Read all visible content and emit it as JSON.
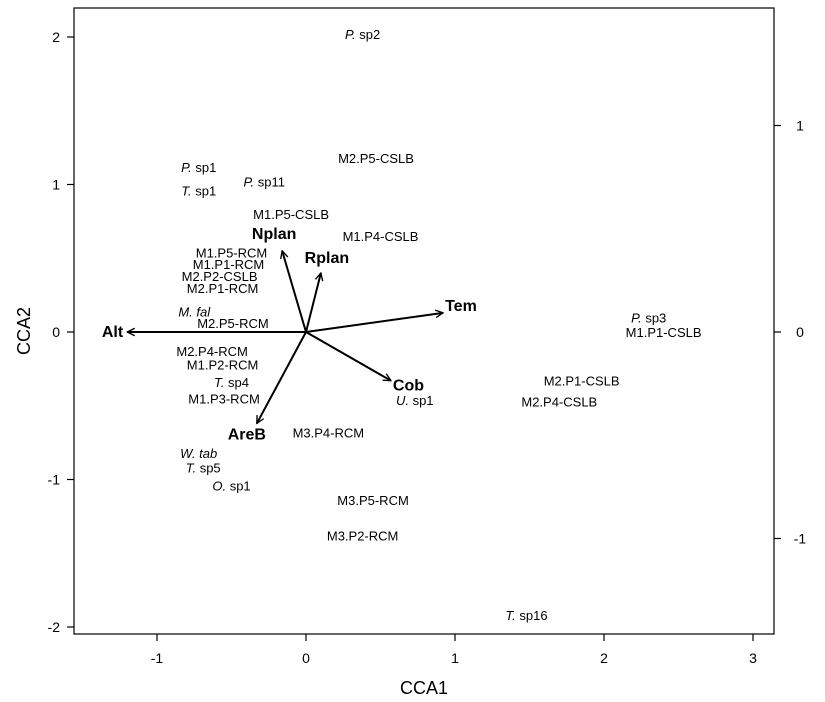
{
  "chart_data": {
    "type": "scatter",
    "title": "",
    "xlabel": "CCA1",
    "ylabel": "CCA2",
    "xlim": [
      -1.55,
      3.15
    ],
    "ylim": [
      -2.05,
      2.2
    ],
    "xticks": [
      "-1",
      "0",
      "1",
      "2",
      "3"
    ],
    "xtick_values": [
      -1,
      0,
      1,
      2,
      3
    ],
    "yticks": [
      "-2",
      "-1",
      "0",
      "1",
      "2"
    ],
    "ytick_values": [
      -2,
      -1,
      0,
      1,
      2
    ],
    "right_ticks": [
      "-1",
      "0",
      "1"
    ],
    "right_tick_values": [
      -1.4,
      0,
      1.4
    ],
    "grid": false,
    "sites": [
      {
        "label": "M2.P5-CSLB",
        "x": 0.47,
        "y": 1.18
      },
      {
        "label": "M1.P5-CSLB",
        "x": -0.1,
        "y": 0.8
      },
      {
        "label": "M1.P4-CSLB",
        "x": 0.5,
        "y": 0.65
      },
      {
        "label": "M1.P5-RCM",
        "x": -0.5,
        "y": 0.54
      },
      {
        "label": "M1.P1-RCM",
        "x": -0.52,
        "y": 0.46
      },
      {
        "label": "M2.P2-CSLB",
        "x": -0.58,
        "y": 0.38
      },
      {
        "label": "M2.P1-RCM",
        "x": -0.56,
        "y": 0.3
      },
      {
        "label": "M2.P5-RCM",
        "x": -0.49,
        "y": 0.06
      },
      {
        "label": "M2.P4-RCM",
        "x": -0.63,
        "y": -0.13
      },
      {
        "label": "M1.P2-RCM",
        "x": -0.56,
        "y": -0.22
      },
      {
        "label": "M1.P3-RCM",
        "x": -0.55,
        "y": -0.45
      },
      {
        "label": "M3.P4-RCM",
        "x": 0.15,
        "y": -0.68
      },
      {
        "label": "M3.P5-RCM",
        "x": 0.45,
        "y": -1.14
      },
      {
        "label": "M3.P2-RCM",
        "x": 0.38,
        "y": -1.38
      },
      {
        "label": "M1.P1-CSLB",
        "x": 2.4,
        "y": 0.0
      },
      {
        "label": "M2.P1-CSLB",
        "x": 1.85,
        "y": -0.33
      },
      {
        "label": "M2.P4-CSLB",
        "x": 1.7,
        "y": -0.47
      }
    ],
    "species": [
      {
        "genus": "P.",
        "epithet": " sp2",
        "x": 0.38,
        "y": 2.02
      },
      {
        "genus": "P.",
        "epithet": " sp1",
        "x": -0.72,
        "y": 1.12
      },
      {
        "genus": "T.",
        "epithet": " sp1",
        "x": -0.72,
        "y": 0.96
      },
      {
        "genus": "P.",
        "epithet": " sp11",
        "x": -0.28,
        "y": 1.02
      },
      {
        "genus": "M. fal",
        "epithet": "",
        "x": -0.75,
        "y": 0.14
      },
      {
        "genus": "T.",
        "epithet": " sp4",
        "x": -0.5,
        "y": -0.34
      },
      {
        "genus": "U.",
        "epithet": " sp1",
        "x": 0.73,
        "y": -0.46
      },
      {
        "genus": "W. tab",
        "epithet": "",
        "x": -0.72,
        "y": -0.82
      },
      {
        "genus": "T.",
        "epithet": " sp5",
        "x": -0.69,
        "y": -0.92
      },
      {
        "genus": "O.",
        "epithet": " sp1",
        "x": -0.5,
        "y": -1.04
      },
      {
        "genus": "P.",
        "epithet": " sp3",
        "x": 2.3,
        "y": 0.1
      },
      {
        "genus": "T.",
        "epithet": " sp16",
        "x": 1.48,
        "y": -1.92
      }
    ],
    "arrows": [
      {
        "label": "Alt",
        "x": -1.2,
        "y": 0.0
      },
      {
        "label": "Nplan",
        "x": -0.16,
        "y": 0.55
      },
      {
        "label": "Rplan",
        "x": 0.1,
        "y": 0.4
      },
      {
        "label": "Tem",
        "x": 0.92,
        "y": 0.13
      },
      {
        "label": "Cob",
        "x": 0.57,
        "y": -0.33
      },
      {
        "label": "AreB",
        "x": -0.33,
        "y": -0.62
      }
    ]
  }
}
